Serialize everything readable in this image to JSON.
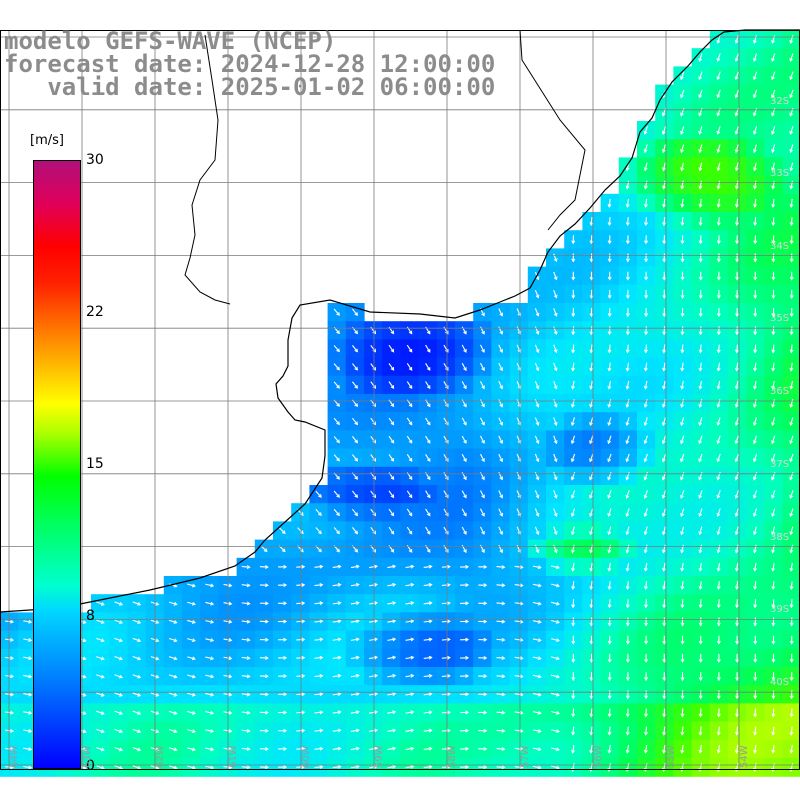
{
  "title": {
    "line1": "modelo GEFS-WAVE (NCEP)",
    "line2": "forecast date: 2024-12-28 12:00:00",
    "line3": "   valid date: 2025-01-02 06:00:00"
  },
  "colorbar": {
    "unit": "[m/s]",
    "ticks": [
      "0",
      "8",
      "15",
      "22",
      "30"
    ],
    "range": [
      0,
      30
    ]
  },
  "lat_labels": [
    "32S",
    "33S",
    "34S",
    "35S",
    "36S",
    "37S",
    "38S",
    "39S",
    "40S"
  ],
  "lon_labels": [
    "64W",
    "63W",
    "62W",
    "61W",
    "60W",
    "59W",
    "58W",
    "57W",
    "56W",
    "55W",
    "54W"
  ],
  "map": {
    "lon_range": [
      -64,
      -53
    ],
    "lat_range": [
      -41,
      -31
    ],
    "grid": true,
    "variable": "wind speed and direction",
    "colors": {
      "land": "#ffffff",
      "grid": "#7a7a7a",
      "coast": "#000000",
      "vector": "#ffffff",
      "title": "#8c8c8c"
    }
  }
}
